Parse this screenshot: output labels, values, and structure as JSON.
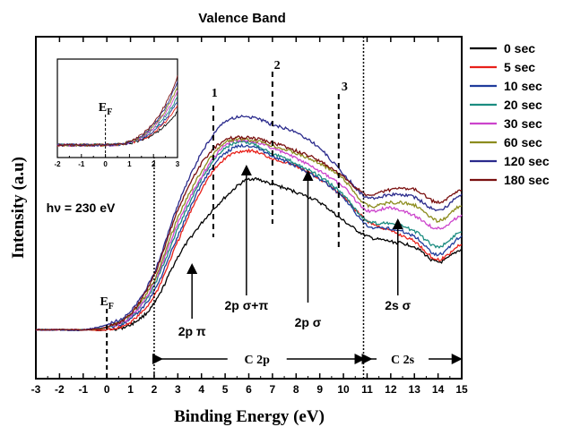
{
  "chart_data": {
    "type": "line",
    "title": "Valence Band",
    "xlabel": "Binding Energy (eV)",
    "ylabel": "Intensity (a.u)",
    "xlim": [
      -3,
      15
    ],
    "ylim": [
      0,
      100
    ],
    "x_ticks": [
      "-3",
      "-2",
      "-1",
      "0",
      "1",
      "2",
      "3",
      "4",
      "5",
      "6",
      "7",
      "8",
      "9",
      "10",
      "11",
      "12",
      "13",
      "14",
      "15"
    ],
    "y_ticks_shown": false,
    "grid": false,
    "legend_position": "right-outside",
    "x": [
      -3,
      -2,
      -1,
      0,
      1,
      2,
      3,
      4,
      5,
      6,
      7,
      8,
      9,
      10,
      11,
      12,
      13,
      14,
      15
    ],
    "series": [
      {
        "name": "0 sec",
        "color": "#000000",
        "values": [
          4,
          4,
          4,
          4,
          6,
          14,
          32,
          45,
          55,
          62,
          60,
          57,
          53,
          46,
          40,
          38,
          36,
          30,
          35
        ]
      },
      {
        "name": "5 sec",
        "color": "#e8201a",
        "values": [
          4,
          4,
          4,
          4,
          7,
          17,
          38,
          58,
          70,
          73,
          70,
          67,
          62,
          55,
          46,
          42,
          38,
          31,
          37
        ]
      },
      {
        "name": "10 sec",
        "color": "#1f3c9c",
        "values": [
          4,
          4,
          4,
          5,
          8,
          19,
          40,
          60,
          72,
          75,
          71,
          67,
          62,
          55,
          44,
          43,
          40,
          33,
          40
        ]
      },
      {
        "name": "20 sec",
        "color": "#1b8c80",
        "values": [
          4,
          4,
          4,
          5,
          9,
          21,
          43,
          62,
          74,
          76,
          72,
          68,
          63,
          56,
          46,
          45,
          42,
          36,
          42
        ]
      },
      {
        "name": "30 sec",
        "color": "#cc44cc",
        "values": [
          4,
          4,
          4,
          5,
          9,
          22,
          45,
          63,
          75,
          77,
          74,
          70,
          65,
          59,
          50,
          51,
          48,
          43,
          48
        ]
      },
      {
        "name": "60 sec",
        "color": "#8c8c1e",
        "values": [
          4,
          4,
          4,
          5,
          10,
          23,
          47,
          65,
          76,
          77,
          75,
          72,
          68,
          62,
          52,
          53,
          52,
          46,
          52
        ]
      },
      {
        "name": "120 sec",
        "color": "#2a2a8c",
        "values": [
          4,
          4,
          4,
          6,
          11,
          26,
          52,
          72,
          84,
          86,
          83,
          80,
          74,
          64,
          55,
          56,
          55,
          50,
          56
        ]
      },
      {
        "name": "180 sec",
        "color": "#7a1010",
        "values": [
          4,
          4,
          4,
          5,
          10,
          25,
          50,
          68,
          77,
          78,
          76,
          73,
          69,
          63,
          56,
          58,
          58,
          53,
          58
        ]
      }
    ],
    "annotations": {
      "ef_label": "E",
      "ef_sub": "F",
      "hv": "hν = 230 eV",
      "marker1": "1",
      "marker2": "2",
      "marker3": "3",
      "p_pi": "2p π",
      "p_sigma_pi": "2p σ+π",
      "p_sigma": "2p σ",
      "s_sigma": "2s σ",
      "c2p": "C 2p",
      "c2s": "C 2s"
    },
    "inset": {
      "xlim": [
        -2,
        3
      ],
      "x_ticks": [
        "-2",
        "-1.5",
        "-1",
        "-0.5",
        "0",
        "0.5",
        "1",
        "1.5",
        "2",
        "2.5",
        "3"
      ],
      "ef_label": "E",
      "ef_sub": "F"
    }
  }
}
